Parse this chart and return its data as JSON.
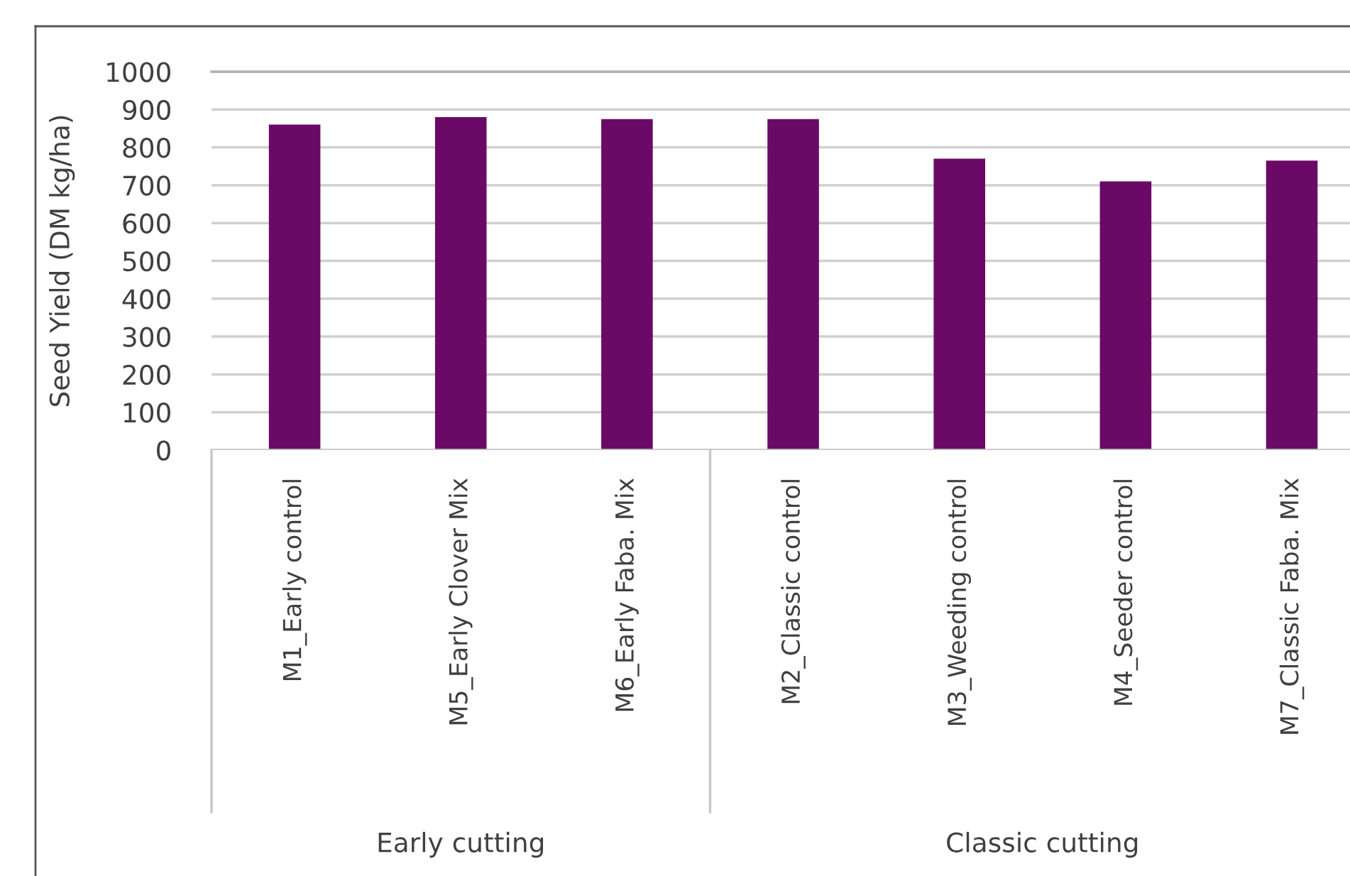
{
  "chart_data": {
    "type": "bar",
    "ylabel": "Seed Yield (DM kg/ha)",
    "categories": [
      "M1_Early control",
      "M5_Early Clover Mix",
      "M6_Early Faba. Mix",
      "M2_Classic control",
      "M3_Weeding control",
      "M4_Seeder control",
      "M7_Classic Faba. Mix"
    ],
    "values": [
      860,
      880,
      875,
      875,
      770,
      710,
      765
    ],
    "color": "#6a0a66",
    "ylim": [
      0,
      1000
    ],
    "yticks": [
      0,
      100,
      200,
      300,
      400,
      500,
      600,
      700,
      800,
      900,
      1000
    ],
    "grid": "y",
    "annotations": [
      "Early cutting",
      "Classic cutting"
    ]
  }
}
